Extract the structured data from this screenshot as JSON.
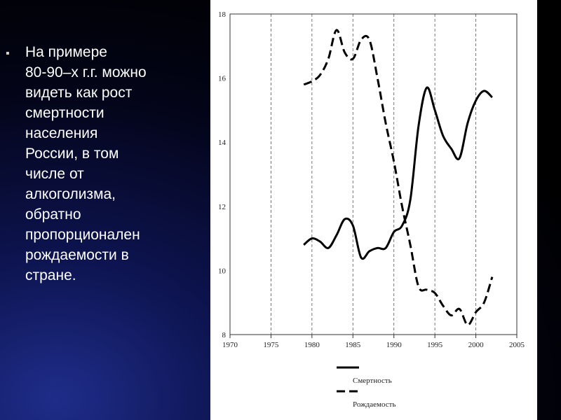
{
  "slide": {
    "bullet": "▪",
    "body": "На примере\n80-90–х г.г. можно\nвидеть как рост\nсмертности\nнаселения\nРоссии, в том\nчисле от\nалкоголизма,\nобратно\nпропорционален\nрождаемости в\nстране."
  },
  "chart_data": {
    "type": "line",
    "title": "",
    "xlabel": "",
    "ylabel": "",
    "xlim": [
      1970,
      2005
    ],
    "ylim": [
      8,
      18
    ],
    "x_ticks": [
      1970,
      1975,
      1980,
      1985,
      1990,
      1995,
      2000,
      2005
    ],
    "y_ticks": [
      8,
      10,
      12,
      14,
      16,
      18
    ],
    "grid": "vertical dashed",
    "legend_position": "bottom",
    "series": [
      {
        "name": "Смертность",
        "style": "solid",
        "points": [
          [
            1979,
            10.8
          ],
          [
            1980,
            11.0
          ],
          [
            1981,
            10.9
          ],
          [
            1982,
            10.7
          ],
          [
            1983,
            11.1
          ],
          [
            1984,
            11.6
          ],
          [
            1985,
            11.4
          ],
          [
            1986,
            10.4
          ],
          [
            1987,
            10.6
          ],
          [
            1988,
            10.7
          ],
          [
            1989,
            10.7
          ],
          [
            1990,
            11.2
          ],
          [
            1991,
            11.4
          ],
          [
            1992,
            12.2
          ],
          [
            1993,
            14.5
          ],
          [
            1994,
            15.7
          ],
          [
            1995,
            15.0
          ],
          [
            1996,
            14.2
          ],
          [
            1997,
            13.8
          ],
          [
            1998,
            13.5
          ],
          [
            1999,
            14.6
          ],
          [
            2000,
            15.3
          ],
          [
            2001,
            15.6
          ],
          [
            2002,
            15.4
          ]
        ]
      },
      {
        "name": "Рождаемость",
        "style": "dashed",
        "points": [
          [
            1979,
            15.8
          ],
          [
            1980,
            15.9
          ],
          [
            1981,
            16.1
          ],
          [
            1982,
            16.6
          ],
          [
            1983,
            17.5
          ],
          [
            1984,
            16.8
          ],
          [
            1985,
            16.6
          ],
          [
            1986,
            17.2
          ],
          [
            1987,
            17.2
          ],
          [
            1988,
            16.0
          ],
          [
            1989,
            14.6
          ],
          [
            1990,
            13.4
          ],
          [
            1991,
            12.0
          ],
          [
            1992,
            10.8
          ],
          [
            1993,
            9.5
          ],
          [
            1994,
            9.4
          ],
          [
            1995,
            9.3
          ],
          [
            1996,
            8.9
          ],
          [
            1997,
            8.6
          ],
          [
            1998,
            8.8
          ],
          [
            1999,
            8.3
          ],
          [
            2000,
            8.7
          ],
          [
            2001,
            9.0
          ],
          [
            2002,
            9.8
          ]
        ]
      }
    ]
  }
}
